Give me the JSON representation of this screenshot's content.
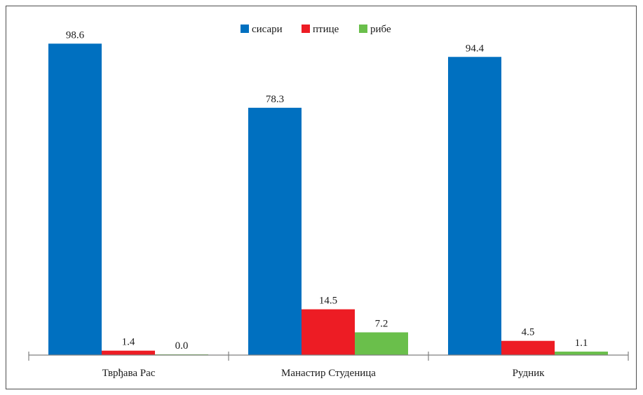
{
  "chart_data": {
    "type": "bar",
    "categories": [
      "Тврђава Рас",
      "Манастир Студеница",
      "Рудник"
    ],
    "series": [
      {
        "name": "сисари",
        "color": "#0070c0",
        "values": [
          98.6,
          78.3,
          94.4
        ]
      },
      {
        "name": "птице",
        "color": "#ed1c24",
        "values": [
          1.4,
          14.5,
          4.5
        ]
      },
      {
        "name": "рибе",
        "color": "#6abf4b",
        "values": [
          0.0,
          7.2,
          1.1
        ]
      }
    ],
    "value_labels": [
      [
        "98.6",
        "78.3",
        "94.4"
      ],
      [
        "1.4",
        "14.5",
        "4.5"
      ],
      [
        "0.0",
        "7.2",
        "1.1"
      ]
    ],
    "title": "",
    "xlabel": "",
    "ylabel": "",
    "ylim": [
      0,
      100
    ],
    "grid": false,
    "legend_position": "top-center"
  }
}
